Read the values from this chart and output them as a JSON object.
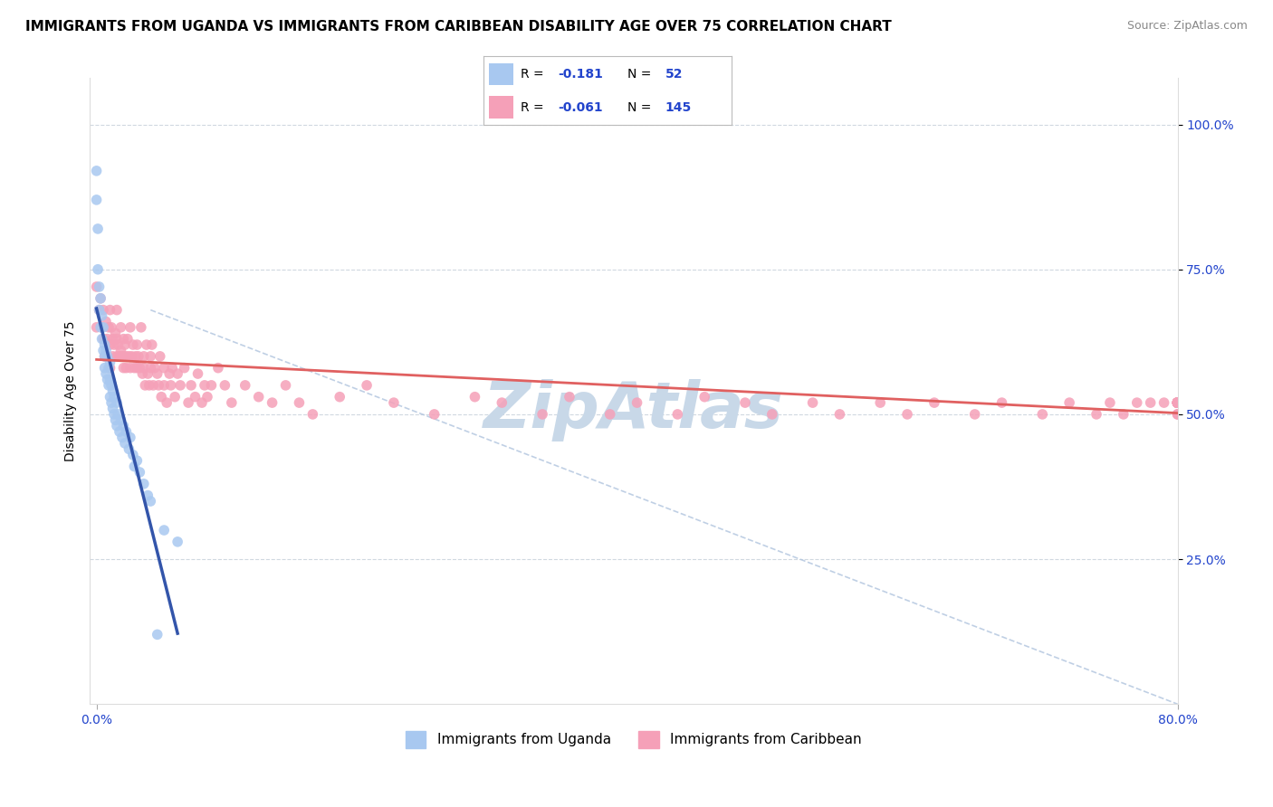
{
  "title": "IMMIGRANTS FROM UGANDA VS IMMIGRANTS FROM CARIBBEAN DISABILITY AGE OVER 75 CORRELATION CHART",
  "source": "Source: ZipAtlas.com",
  "ylabel": "Disability Age Over 75",
  "uganda_color": "#a8c8f0",
  "caribbean_color": "#f5a0b8",
  "uganda_line_color": "#3355aa",
  "caribbean_line_color": "#e06060",
  "diagonal_color": "#b0c4de",
  "r_value_color": "#2244cc",
  "watermark_color": "#c8d8e8",
  "title_fontsize": 11,
  "source_fontsize": 9,
  "axis_label_fontsize": 10,
  "tick_fontsize": 10,
  "uganda_scatter_x": [
    0.0,
    0.0,
    0.001,
    0.001,
    0.002,
    0.002,
    0.003,
    0.003,
    0.004,
    0.004,
    0.005,
    0.005,
    0.006,
    0.006,
    0.006,
    0.007,
    0.007,
    0.008,
    0.008,
    0.009,
    0.009,
    0.01,
    0.01,
    0.01,
    0.011,
    0.011,
    0.012,
    0.012,
    0.013,
    0.013,
    0.014,
    0.015,
    0.015,
    0.016,
    0.017,
    0.018,
    0.019,
    0.02,
    0.021,
    0.022,
    0.024,
    0.025,
    0.027,
    0.028,
    0.03,
    0.032,
    0.035,
    0.038,
    0.04,
    0.045,
    0.05,
    0.06
  ],
  "uganda_scatter_y": [
    0.92,
    0.87,
    0.82,
    0.75,
    0.68,
    0.72,
    0.65,
    0.7,
    0.63,
    0.67,
    0.61,
    0.65,
    0.58,
    0.62,
    0.6,
    0.57,
    0.61,
    0.56,
    0.6,
    0.55,
    0.58,
    0.53,
    0.56,
    0.59,
    0.52,
    0.55,
    0.51,
    0.54,
    0.5,
    0.53,
    0.49,
    0.52,
    0.48,
    0.5,
    0.47,
    0.49,
    0.46,
    0.48,
    0.45,
    0.47,
    0.44,
    0.46,
    0.43,
    0.41,
    0.42,
    0.4,
    0.38,
    0.36,
    0.35,
    0.12,
    0.3,
    0.28
  ],
  "caribbean_scatter_x": [
    0.0,
    0.0,
    0.002,
    0.003,
    0.004,
    0.005,
    0.005,
    0.006,
    0.007,
    0.008,
    0.008,
    0.009,
    0.01,
    0.01,
    0.01,
    0.011,
    0.012,
    0.012,
    0.013,
    0.014,
    0.015,
    0.015,
    0.015,
    0.016,
    0.017,
    0.018,
    0.018,
    0.019,
    0.02,
    0.02,
    0.02,
    0.021,
    0.022,
    0.022,
    0.023,
    0.024,
    0.025,
    0.025,
    0.026,
    0.027,
    0.028,
    0.029,
    0.03,
    0.03,
    0.031,
    0.032,
    0.033,
    0.034,
    0.035,
    0.035,
    0.036,
    0.037,
    0.038,
    0.039,
    0.04,
    0.04,
    0.041,
    0.042,
    0.043,
    0.045,
    0.046,
    0.047,
    0.048,
    0.05,
    0.05,
    0.052,
    0.054,
    0.055,
    0.056,
    0.058,
    0.06,
    0.062,
    0.065,
    0.068,
    0.07,
    0.073,
    0.075,
    0.078,
    0.08,
    0.082,
    0.085,
    0.09,
    0.095,
    0.1,
    0.11,
    0.12,
    0.13,
    0.14,
    0.15,
    0.16,
    0.18,
    0.2,
    0.22,
    0.25,
    0.28,
    0.3,
    0.33,
    0.35,
    0.38,
    0.4,
    0.43,
    0.45,
    0.48,
    0.5,
    0.53,
    0.55,
    0.58,
    0.6,
    0.62,
    0.65,
    0.67,
    0.7,
    0.72,
    0.74,
    0.75,
    0.76,
    0.77,
    0.78,
    0.79,
    0.8,
    0.8,
    0.8,
    0.8,
    0.8,
    0.8,
    0.8,
    0.8,
    0.8,
    0.8,
    0.8,
    0.8,
    0.8,
    0.8,
    0.8,
    0.8,
    0.8,
    0.8,
    0.8,
    0.8,
    0.8,
    0.8
  ],
  "caribbean_scatter_y": [
    0.72,
    0.65,
    0.68,
    0.7,
    0.65,
    0.63,
    0.68,
    0.6,
    0.66,
    0.63,
    0.6,
    0.65,
    0.68,
    0.62,
    0.58,
    0.65,
    0.63,
    0.6,
    0.62,
    0.64,
    0.68,
    0.63,
    0.6,
    0.62,
    0.6,
    0.65,
    0.61,
    0.6,
    0.63,
    0.6,
    0.58,
    0.62,
    0.6,
    0.58,
    0.63,
    0.6,
    0.65,
    0.58,
    0.6,
    0.62,
    0.58,
    0.6,
    0.62,
    0.58,
    0.6,
    0.58,
    0.65,
    0.57,
    0.6,
    0.58,
    0.55,
    0.62,
    0.57,
    0.55,
    0.6,
    0.58,
    0.62,
    0.55,
    0.58,
    0.57,
    0.55,
    0.6,
    0.53,
    0.58,
    0.55,
    0.52,
    0.57,
    0.55,
    0.58,
    0.53,
    0.57,
    0.55,
    0.58,
    0.52,
    0.55,
    0.53,
    0.57,
    0.52,
    0.55,
    0.53,
    0.55,
    0.58,
    0.55,
    0.52,
    0.55,
    0.53,
    0.52,
    0.55,
    0.52,
    0.5,
    0.53,
    0.55,
    0.52,
    0.5,
    0.53,
    0.52,
    0.5,
    0.53,
    0.5,
    0.52,
    0.5,
    0.53,
    0.52,
    0.5,
    0.52,
    0.5,
    0.52,
    0.5,
    0.52,
    0.5,
    0.52,
    0.5,
    0.52,
    0.5,
    0.52,
    0.5,
    0.52,
    0.52,
    0.52,
    0.5,
    0.52,
    0.52,
    0.52,
    0.5,
    0.52,
    0.52,
    0.52,
    0.52,
    0.52,
    0.52,
    0.52,
    0.52,
    0.52,
    0.52,
    0.52,
    0.52,
    0.52,
    0.52,
    0.52,
    0.52,
    0.52
  ]
}
